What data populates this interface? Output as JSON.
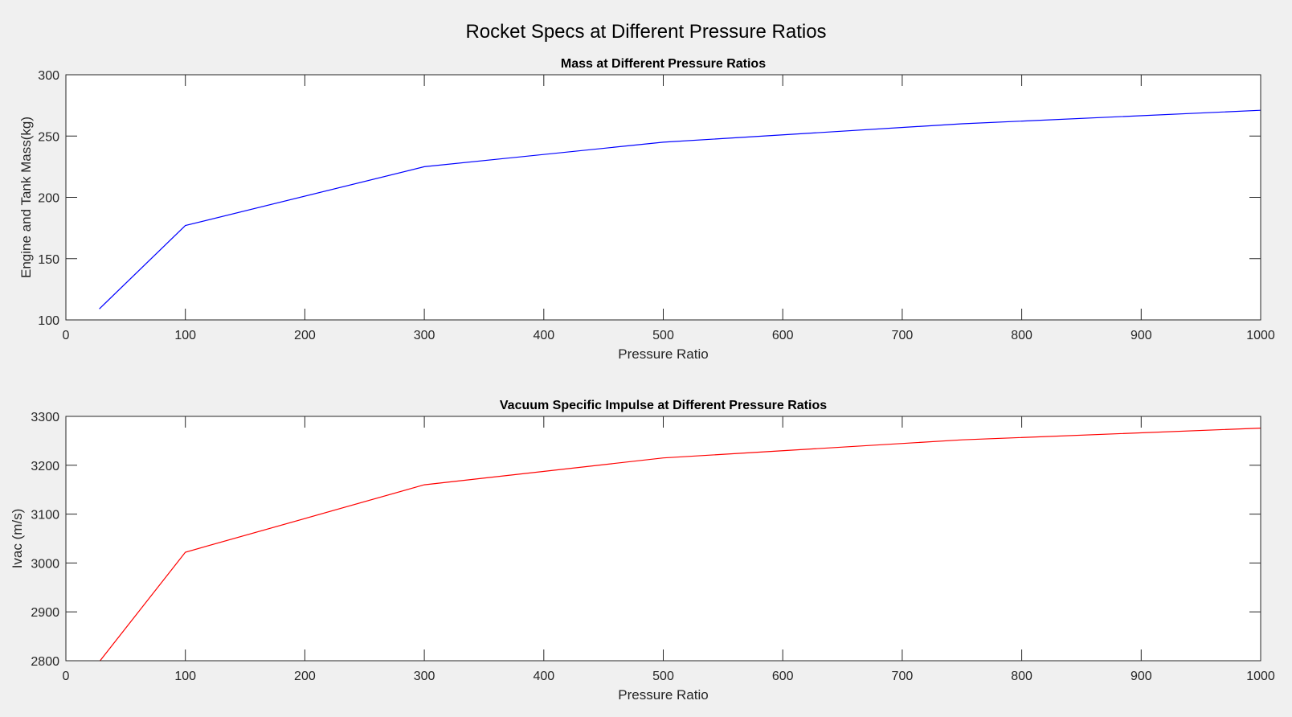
{
  "figure": {
    "title": "Rocket Specs at Different Pressure Ratios",
    "background": "#f0f0f0"
  },
  "chart_data": [
    {
      "type": "line",
      "title": "Mass at Different Pressure Ratios",
      "xlabel": "Pressure Ratio",
      "ylabel": "Engine and Tank Mass(kg)",
      "xlim": [
        0,
        1000
      ],
      "ylim": [
        100,
        300
      ],
      "xticks": [
        0,
        100,
        200,
        300,
        400,
        500,
        600,
        700,
        800,
        900,
        1000
      ],
      "yticks": [
        100,
        150,
        200,
        250,
        300
      ],
      "grid": false,
      "series": [
        {
          "name": "Engine and Tank Mass",
          "color": "#0000ff",
          "x": [
            28,
            100,
            300,
            500,
            750,
            1000
          ],
          "y": [
            109,
            177,
            225,
            245,
            260,
            271
          ]
        }
      ]
    },
    {
      "type": "line",
      "title": "Vacuum Specific Impulse at Different Pressure Ratios",
      "xlabel": "Pressure Ratio",
      "ylabel": "Ivac (m/s)",
      "xlim": [
        0,
        1000
      ],
      "ylim": [
        2800,
        3300
      ],
      "xticks": [
        0,
        100,
        200,
        300,
        400,
        500,
        600,
        700,
        800,
        900,
        1000
      ],
      "yticks": [
        2800,
        2900,
        3000,
        3100,
        3200,
        3300
      ],
      "grid": false,
      "series": [
        {
          "name": "Ivac",
          "color": "#ff0000",
          "x": [
            28,
            100,
            300,
            500,
            750,
            1000
          ],
          "y": [
            2798,
            3022,
            3160,
            3215,
            3252,
            3276
          ]
        }
      ]
    }
  ]
}
